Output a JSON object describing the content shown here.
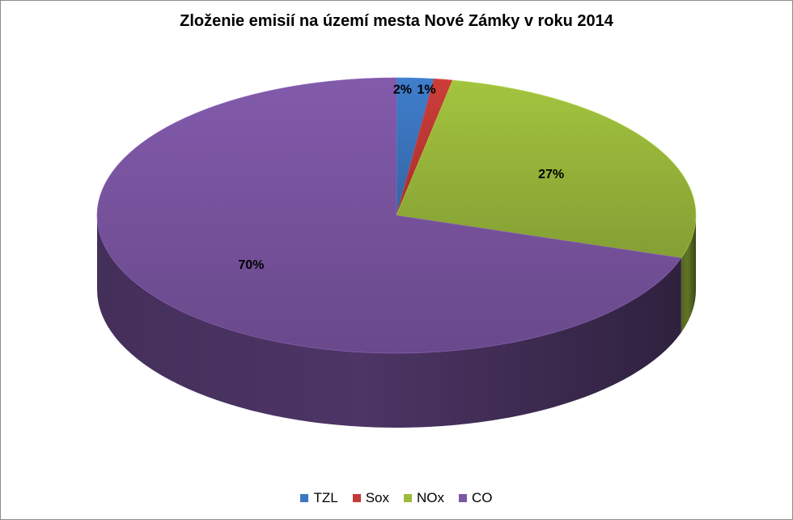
{
  "chart_data": {
    "type": "pie",
    "title": "Zloženie emisií na území mesta Nové Zámky v roku 2014",
    "categories": [
      "TZL",
      "Sox",
      "NOx",
      "CO"
    ],
    "values": [
      2,
      1,
      27,
      70
    ],
    "value_labels": [
      "2%",
      "1%",
      "27%",
      "70%"
    ],
    "colors": [
      "#3c78c2",
      "#c23a36",
      "#9bbb3c",
      "#7c56a3"
    ],
    "legend_position": "bottom",
    "style": "3d-pie"
  }
}
